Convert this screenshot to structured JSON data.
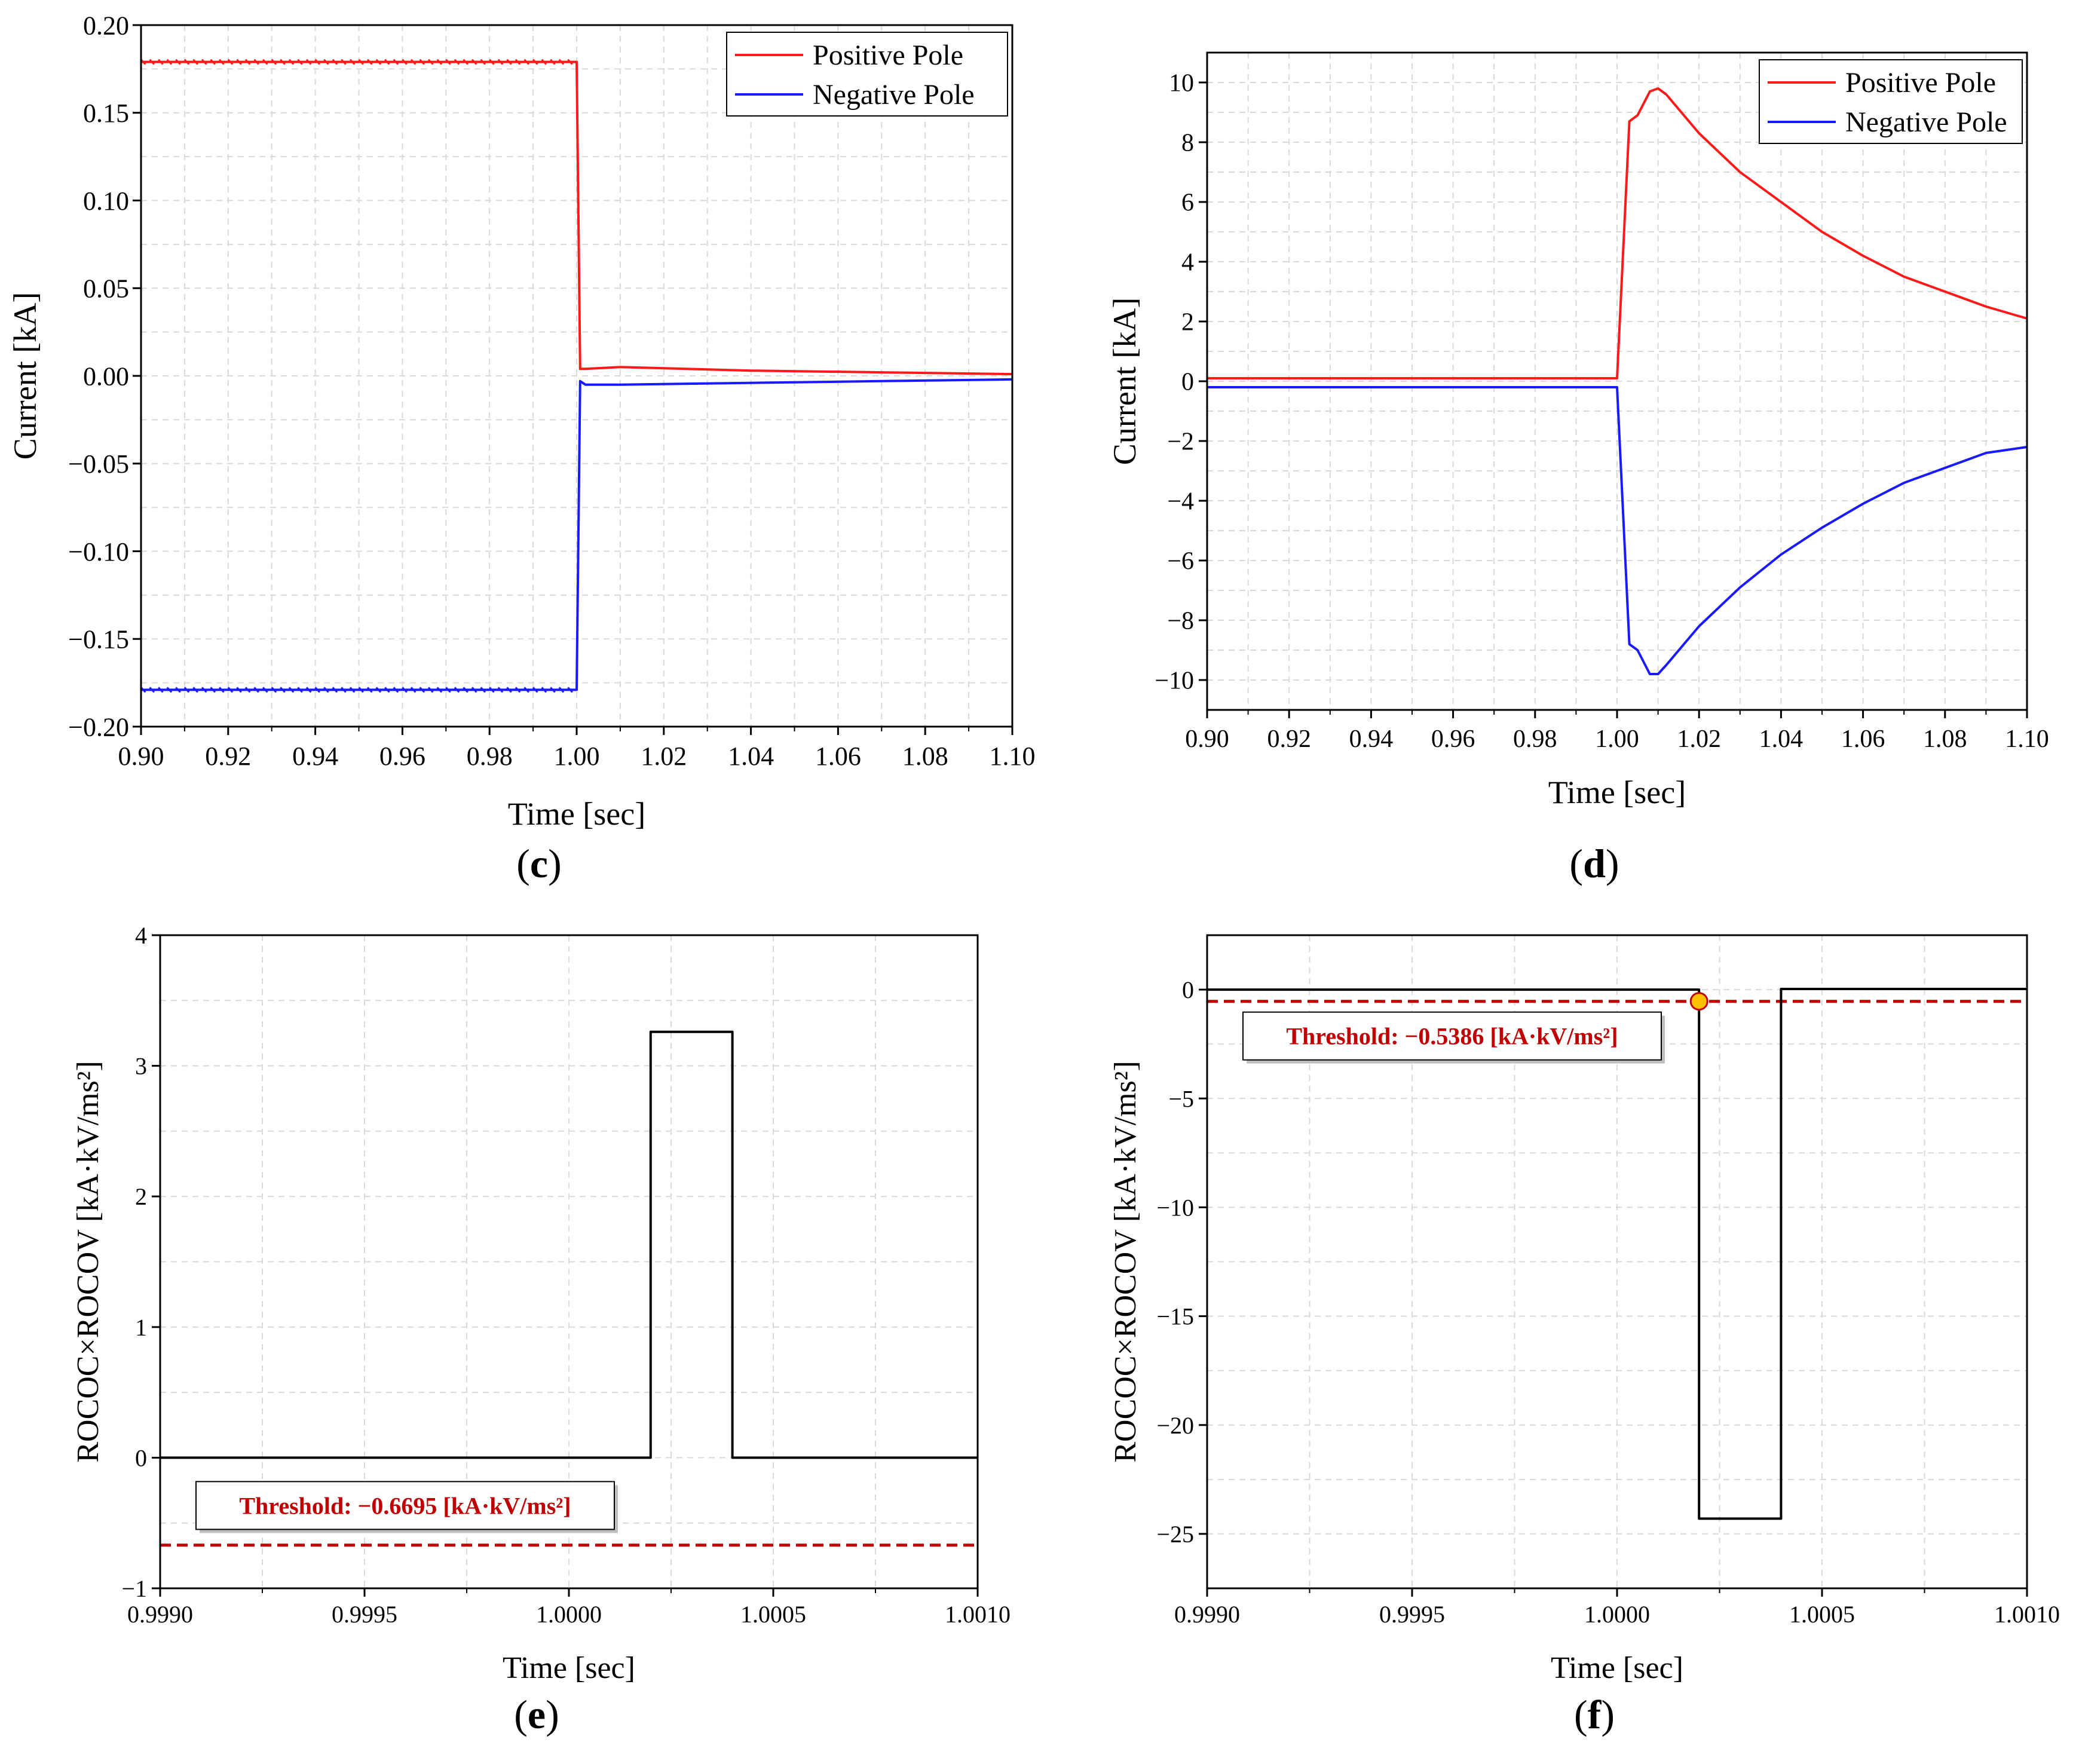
{
  "colors": {
    "positive": "#ff1a1a",
    "negative": "#1a1aff",
    "step": "#000000",
    "threshold": "#c00000",
    "marker": "#ffc000",
    "grid": "#d9d9d9"
  },
  "chart_data": [
    {
      "panel": "(c)",
      "type": "line",
      "xlabel": "Time [sec]",
      "ylabel": "Current [kA]",
      "xlim": [
        0.9,
        1.1
      ],
      "ylim": [
        -0.2,
        0.2
      ],
      "xticks": [
        "0.90",
        "0.92",
        "0.94",
        "0.96",
        "0.98",
        "1.00",
        "1.02",
        "1.04",
        "1.06",
        "1.08",
        "1.10"
      ],
      "yticks": [
        "0.20",
        "0.15",
        "0.10",
        "0.05",
        "0.00",
        "−0.05",
        "−0.10",
        "−0.15",
        "−0.20"
      ],
      "legend": [
        "Positive Pole",
        "Negative Pole"
      ],
      "legend_position": "top-right",
      "series": [
        {
          "name": "Positive Pole",
          "x": [
            0.9,
            1.0,
            1.0008,
            1.002,
            1.01,
            1.04,
            1.07,
            1.1
          ],
          "y": [
            0.179,
            0.179,
            0.004,
            0.004,
            0.005,
            0.003,
            0.002,
            0.001
          ]
        },
        {
          "name": "Negative Pole",
          "x": [
            0.9,
            1.0,
            1.0008,
            1.002,
            1.01,
            1.04,
            1.07,
            1.1
          ],
          "y": [
            -0.179,
            -0.179,
            -0.003,
            -0.005,
            -0.005,
            -0.004,
            -0.003,
            -0.002
          ]
        }
      ]
    },
    {
      "panel": "(d)",
      "type": "line",
      "xlabel": "Time [sec]",
      "ylabel": "Current [kA]",
      "xlim": [
        0.9,
        1.1
      ],
      "ylim": [
        -11,
        11
      ],
      "xticks": [
        "0.90",
        "0.92",
        "0.94",
        "0.96",
        "0.98",
        "1.00",
        "1.02",
        "1.04",
        "1.06",
        "1.08",
        "1.10"
      ],
      "yticks": [
        "10",
        "8",
        "6",
        "4",
        "2",
        "0",
        "−2",
        "−4",
        "−6",
        "−8",
        "−10"
      ],
      "legend": [
        "Positive Pole",
        "Negative Pole"
      ],
      "legend_position": "top-right",
      "series": [
        {
          "name": "Positive Pole",
          "x": [
            0.9,
            1.0,
            1.003,
            1.005,
            1.008,
            1.01,
            1.012,
            1.02,
            1.03,
            1.04,
            1.05,
            1.06,
            1.07,
            1.08,
            1.09,
            1.1
          ],
          "y": [
            0.1,
            0.1,
            8.7,
            8.9,
            9.7,
            9.8,
            9.6,
            8.3,
            7.0,
            6.0,
            5.0,
            4.2,
            3.5,
            3.0,
            2.5,
            2.1
          ]
        },
        {
          "name": "Negative Pole",
          "x": [
            0.9,
            1.0,
            1.003,
            1.005,
            1.008,
            1.01,
            1.012,
            1.02,
            1.03,
            1.04,
            1.05,
            1.06,
            1.07,
            1.08,
            1.09,
            1.1
          ],
          "y": [
            -0.2,
            -0.2,
            -8.8,
            -9.0,
            -9.8,
            -9.8,
            -9.5,
            -8.2,
            -6.9,
            -5.8,
            -4.9,
            -4.1,
            -3.4,
            -2.9,
            -2.4,
            -2.2
          ]
        }
      ]
    },
    {
      "panel": "(e)",
      "type": "line",
      "xlabel": "Time [sec]",
      "ylabel": "ROCOC×ROCOV [kA·kV/ms²]",
      "xlim": [
        0.999,
        1.001
      ],
      "ylim": [
        -1,
        4
      ],
      "xticks": [
        "0.9990",
        "0.9995",
        "1.0000",
        "1.0005",
        "1.0010"
      ],
      "yticks": [
        "4",
        "3",
        "2",
        "1",
        "0",
        "−1"
      ],
      "series": [
        {
          "name": "ROCOC×ROCOV",
          "x": [
            0.999,
            1.0002,
            1.0002,
            1.0004,
            1.0004,
            1.001
          ],
          "y": [
            0,
            0,
            3.26,
            3.26,
            0,
            0
          ]
        }
      ],
      "threshold": {
        "value": -0.6695,
        "label": "Threshold: −0.6695 [kA·kV/ms²]"
      }
    },
    {
      "panel": "(f)",
      "type": "line",
      "xlabel": "Time [sec]",
      "ylabel": "ROCOC×ROCOV [kA·kV/ms²]",
      "xlim": [
        0.999,
        1.001
      ],
      "ylim": [
        -27.5,
        2.5
      ],
      "xticks": [
        "0.9990",
        "0.9995",
        "1.0000",
        "1.0005",
        "1.0010"
      ],
      "yticks": [
        "0",
        "−5",
        "−10",
        "−15",
        "−20",
        "−25"
      ],
      "series": [
        {
          "name": "ROCOC×ROCOV",
          "x": [
            0.999,
            1.0002,
            1.0002,
            1.0004,
            1.0004,
            1.001
          ],
          "y": [
            0,
            0,
            -24.3,
            -24.3,
            0.03,
            0.03
          ]
        }
      ],
      "threshold": {
        "value": -0.5386,
        "label": "Threshold: −0.5386 [kA·kV/ms²]"
      },
      "marker": {
        "x": 1.0002,
        "y": -0.5386
      }
    }
  ]
}
